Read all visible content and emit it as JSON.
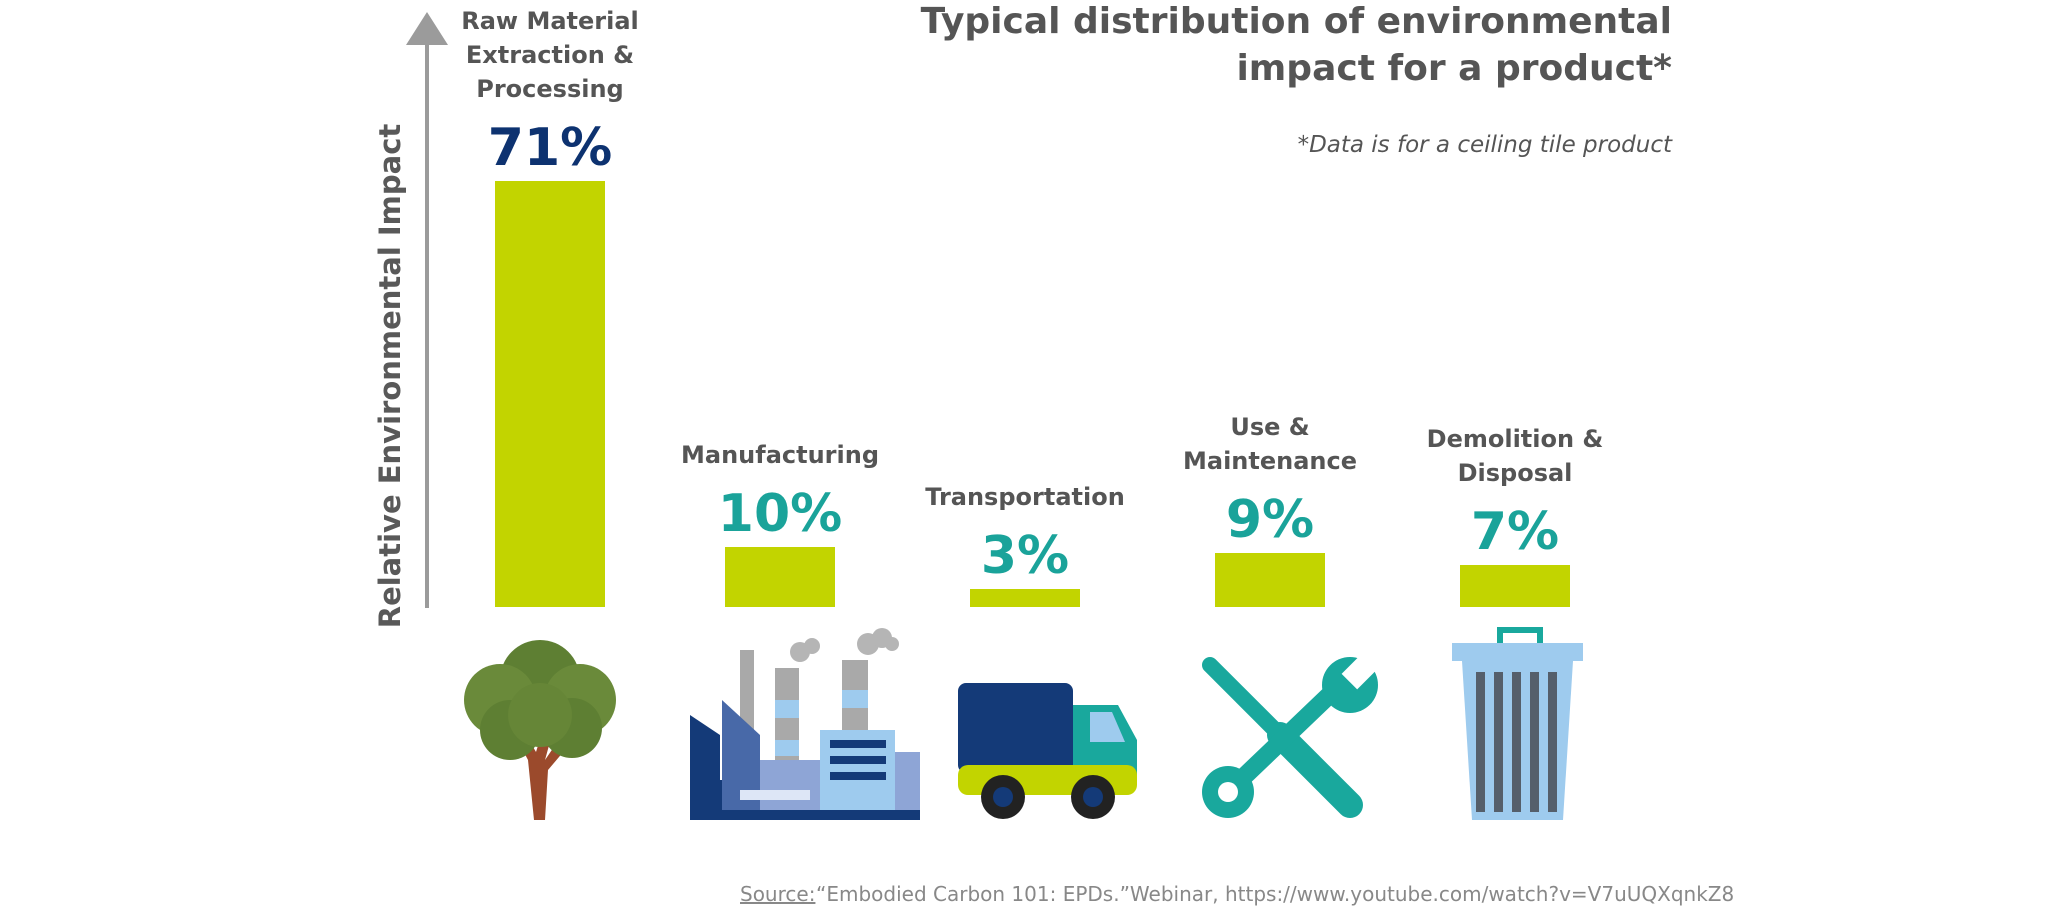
{
  "chart_data": {
    "type": "bar",
    "title": "Typical distribution of environmental impact for a product*",
    "title_lines": [
      "Typical distribution of environmental",
      "impact for a product*"
    ],
    "subtitle": "*Data is for a ceiling tile product",
    "ylabel": "Relative Environmental Impact",
    "categories": [
      "Raw Material Extraction & Processing",
      "Manufacturing",
      "Transportation",
      "Use & Maintenance",
      "Demolition & Disposal"
    ],
    "category_label_lines": [
      [
        "Raw Material",
        "Extraction &",
        "Processing"
      ],
      [
        "Manufacturing"
      ],
      [
        "Transportation"
      ],
      [
        "Use &",
        "Maintenance"
      ],
      [
        "Demolition &",
        "Disposal"
      ]
    ],
    "values": [
      71,
      10,
      3,
      9,
      7
    ],
    "value_labels": [
      "71%",
      "10%",
      "3%",
      "9%",
      "7%"
    ],
    "icons": [
      "tree-icon",
      "factory-icon",
      "truck-icon",
      "tools-icon",
      "trash-can-icon"
    ],
    "colors": {
      "bar": "#c2d400",
      "value_primary": "#0d3270",
      "value_secondary": "#1aa39a",
      "axis": "#9b9b9b"
    },
    "source": {
      "prefix": "Source:",
      "text": "“Embodied Carbon 101: EPDs.”Webinar, https://www.youtube.com/watch?v=V7uUQXqnkZ8"
    }
  }
}
